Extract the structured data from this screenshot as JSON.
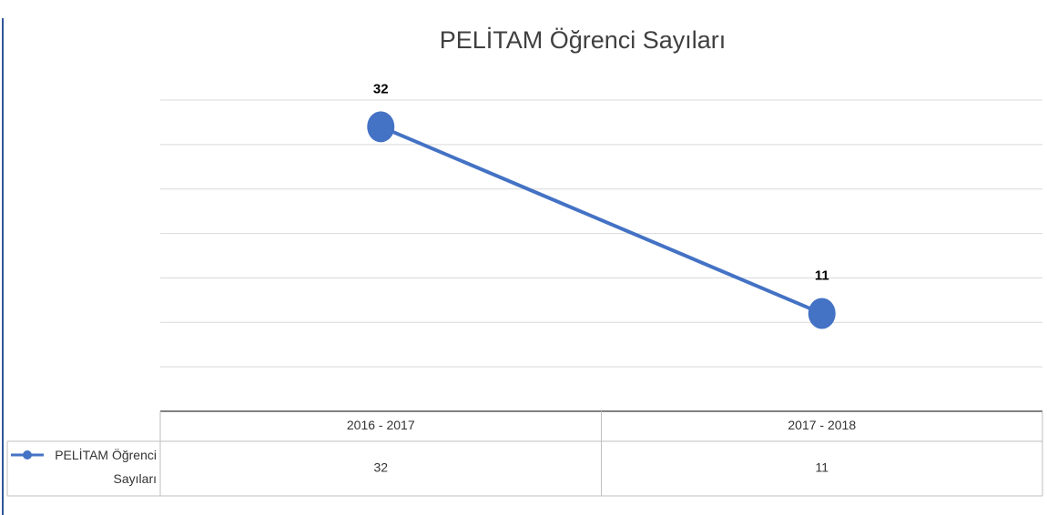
{
  "chart_data": {
    "type": "line",
    "title": "PELİTAM Öğrenci Sayıları",
    "categories": [
      "2016 - 2017",
      "2017 - 2018"
    ],
    "series": [
      {
        "name": "PELİTAM Öğrenci Sayıları",
        "color": "#4472c4",
        "values": [
          32,
          11
        ]
      }
    ],
    "ylim": [
      0,
      35
    ],
    "yticks": [
      0,
      5,
      10,
      15,
      20,
      25,
      30,
      35
    ],
    "grid": true,
    "data_table": true
  }
}
